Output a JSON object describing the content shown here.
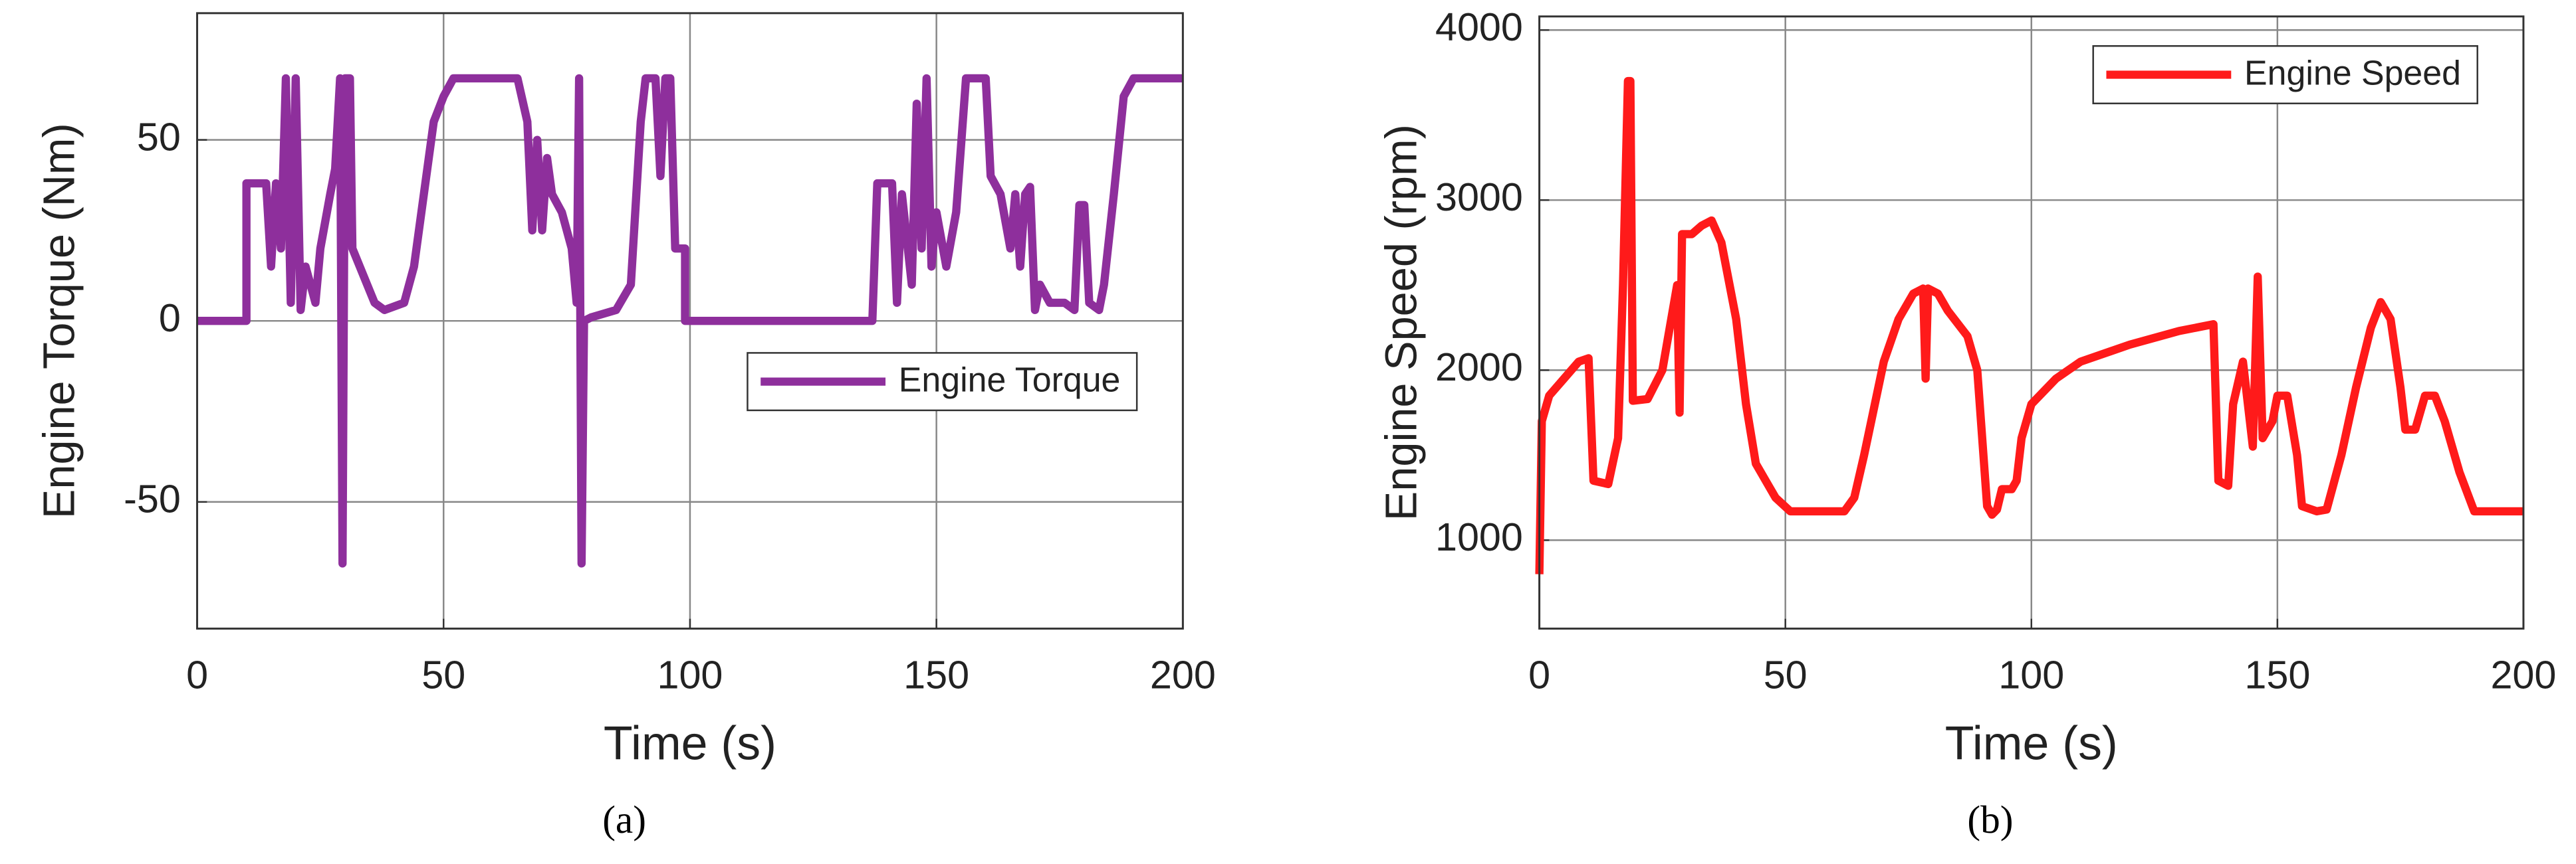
{
  "chart_data": [
    {
      "type": "line",
      "caption": "(a)",
      "xlabel": "Time (s)",
      "ylabel": "Engine Torque (Nm)",
      "xlim": [
        0,
        200
      ],
      "xticks": [
        0,
        50,
        100,
        150,
        200
      ],
      "ylim": [
        -85,
        85
      ],
      "yticks": [
        -50,
        0,
        50
      ],
      "grid": true,
      "legend": "right",
      "x": [
        0,
        10,
        10,
        14,
        15,
        16,
        17,
        18,
        19,
        20,
        21,
        22,
        24,
        25,
        27,
        28,
        29,
        29.5,
        30,
        31,
        31.5,
        33,
        36,
        38,
        42,
        44,
        46,
        48,
        50,
        52,
        65,
        67,
        68,
        69,
        70,
        71,
        72,
        74,
        76,
        77,
        77.5,
        78,
        78.5,
        80,
        85,
        88,
        90,
        91,
        93,
        94,
        95,
        96,
        97,
        99,
        99,
        137,
        138,
        141,
        142,
        143,
        145,
        146,
        147,
        148,
        149,
        150,
        152,
        154,
        156,
        160,
        161,
        163,
        165,
        166,
        167,
        168,
        169,
        170,
        171,
        173,
        176,
        178,
        179,
        180,
        181,
        183,
        184,
        186,
        188,
        190,
        200
      ],
      "series": [
        {
          "name": "Engine Torque",
          "color": "#8e2f9c",
          "values": [
            0,
            0,
            38,
            38,
            15,
            38,
            20,
            67,
            5,
            67,
            3,
            15,
            5,
            20,
            35,
            42,
            67,
            -67,
            67,
            67,
            20,
            15,
            5,
            3,
            5,
            15,
            35,
            55,
            62,
            67,
            67,
            55,
            25,
            50,
            25,
            45,
            35,
            30,
            20,
            5,
            67,
            -67,
            0,
            1,
            3,
            10,
            55,
            67,
            67,
            40,
            67,
            67,
            20,
            20,
            0,
            0,
            38,
            38,
            5,
            35,
            10,
            60,
            20,
            67,
            15,
            30,
            15,
            30,
            67,
            67,
            40,
            35,
            20,
            35,
            15,
            35,
            37,
            3,
            10,
            5,
            5,
            3,
            32,
            32,
            5,
            3,
            10,
            35,
            62,
            67,
            67
          ]
        }
      ]
    },
    {
      "type": "line",
      "caption": "(b)",
      "xlabel": "Time (s)",
      "ylabel": "Engine Speed (rpm)",
      "xlim": [
        0,
        200
      ],
      "xticks": [
        0,
        50,
        100,
        150,
        200
      ],
      "ylim": [
        480,
        4080
      ],
      "yticks": [
        1000,
        2000,
        3000,
        4000
      ],
      "grid": true,
      "legend": "upper right",
      "x": [
        0,
        0.5,
        2,
        5,
        8,
        10,
        11,
        14,
        16,
        17,
        18,
        18.5,
        19,
        22,
        25,
        28,
        28.5,
        29,
        31,
        33,
        35,
        37,
        40,
        42,
        44,
        48,
        51,
        62,
        64,
        66,
        70,
        73,
        76,
        78,
        78.5,
        79,
        81,
        83,
        87,
        89,
        91,
        92,
        93,
        94,
        96,
        97,
        98,
        100,
        105,
        110,
        120,
        130,
        137,
        138,
        140,
        141,
        143,
        145,
        146,
        147,
        149,
        150,
        152,
        154,
        155,
        158,
        160,
        163,
        166,
        169,
        171,
        173,
        175,
        176,
        178,
        180,
        182,
        184,
        187,
        190,
        200
      ],
      "series": [
        {
          "name": "Engine Speed",
          "color": "#ff1a1a",
          "values": [
            800,
            1700,
            1850,
            1950,
            2050,
            2070,
            1350,
            1330,
            1600,
            2500,
            3700,
            3700,
            1820,
            1830,
            2000,
            2500,
            1750,
            2800,
            2800,
            2850,
            2880,
            2750,
            2300,
            1800,
            1450,
            1250,
            1170,
            1170,
            1250,
            1500,
            2050,
            2300,
            2450,
            2480,
            1950,
            2480,
            2450,
            2350,
            2200,
            2000,
            1200,
            1150,
            1180,
            1300,
            1300,
            1350,
            1600,
            1800,
            1950,
            2050,
            2150,
            2230,
            2270,
            1350,
            1320,
            1800,
            2050,
            1550,
            2550,
            1600,
            1700,
            1850,
            1850,
            1500,
            1200,
            1170,
            1180,
            1500,
            1900,
            2250,
            2400,
            2300,
            1900,
            1650,
            1650,
            1850,
            1850,
            1700,
            1400,
            1170,
            1170
          ]
        }
      ]
    }
  ]
}
